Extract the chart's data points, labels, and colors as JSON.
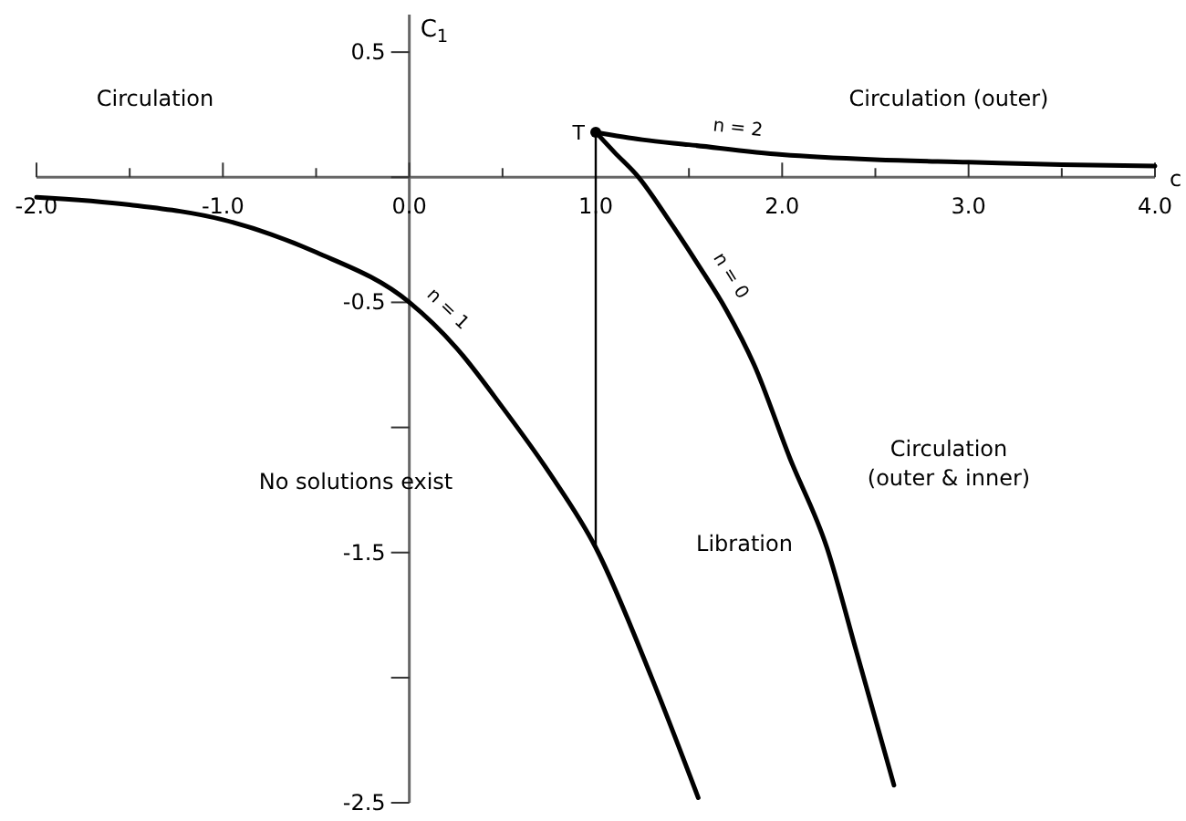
{
  "chart_data": {
    "type": "line",
    "xlabel": "c",
    "ylabel": "C$_{1}$",
    "xlim": [
      -2,
      4
    ],
    "ylim": [
      -2.5,
      0.65
    ],
    "xticks": [
      {
        "value": -2,
        "label": "-2.0"
      },
      {
        "value": -1.5,
        "label": null
      },
      {
        "value": -1,
        "label": "-1.0"
      },
      {
        "value": -0.5,
        "label": null
      },
      {
        "value": 0,
        "label": "0.0"
      },
      {
        "value": 0.5,
        "label": null
      },
      {
        "value": 1,
        "label": "1.0"
      },
      {
        "value": 1.5,
        "label": null
      },
      {
        "value": 2,
        "label": "2.0"
      },
      {
        "value": 2.5,
        "label": null
      },
      {
        "value": 3,
        "label": "3.0"
      },
      {
        "value": 3.5,
        "label": null
      },
      {
        "value": 4,
        "label": "4.0"
      }
    ],
    "yticks": [
      0.5,
      {
        "value": 0,
        "label": null
      },
      -0.5,
      {
        "value": -1,
        "label": null
      },
      -1.5,
      {
        "value": -2,
        "label": null
      },
      -2.5
    ],
    "series": [
      {
        "name": "n = 1",
        "color": "#000000",
        "x": [
          -2,
          -1.5,
          -1,
          -0.5,
          0,
          0.25,
          0.5,
          0.75,
          1,
          1.3,
          1.55
        ],
        "values": [
          -0.08,
          -0.11,
          -0.17,
          -0.3,
          -0.5,
          -0.68,
          -0.92,
          -1.18,
          -1.48,
          -2.0,
          -2.48
        ]
      },
      {
        "name": "n = 0",
        "color": "#000000",
        "x": [
          1,
          1.1,
          1.23,
          1.4,
          1.55,
          1.7,
          1.85,
          2.04,
          2.24,
          2.4,
          2.6
        ],
        "values": [
          0.18,
          0.1,
          0,
          -0.18,
          -0.35,
          -0.53,
          -0.75,
          -1.12,
          -1.48,
          -1.9,
          -2.43
        ]
      },
      {
        "name": "n = 2",
        "color": "#000000",
        "x": [
          1,
          1.25,
          1.5,
          2,
          2.5,
          3,
          3.5,
          4
        ],
        "values": [
          0.18,
          0.15,
          0.13,
          0.09,
          0.07,
          0.06,
          0.05,
          0.045
        ]
      },
      {
        "color": "#000000",
        "x": [
          1,
          1
        ],
        "values": [
          0.18,
          -1.48
        ]
      }
    ],
    "annotations": [
      {
        "text": "T",
        "x": 1,
        "y": 0.18
      },
      "Circulation",
      "Circulation (outer)",
      "Circulation\n(outer & inner)",
      "No solutions exist",
      "Libration"
    ],
    "marker": "none",
    "line_style": "solid",
    "grid": false,
    "legend": false
  }
}
